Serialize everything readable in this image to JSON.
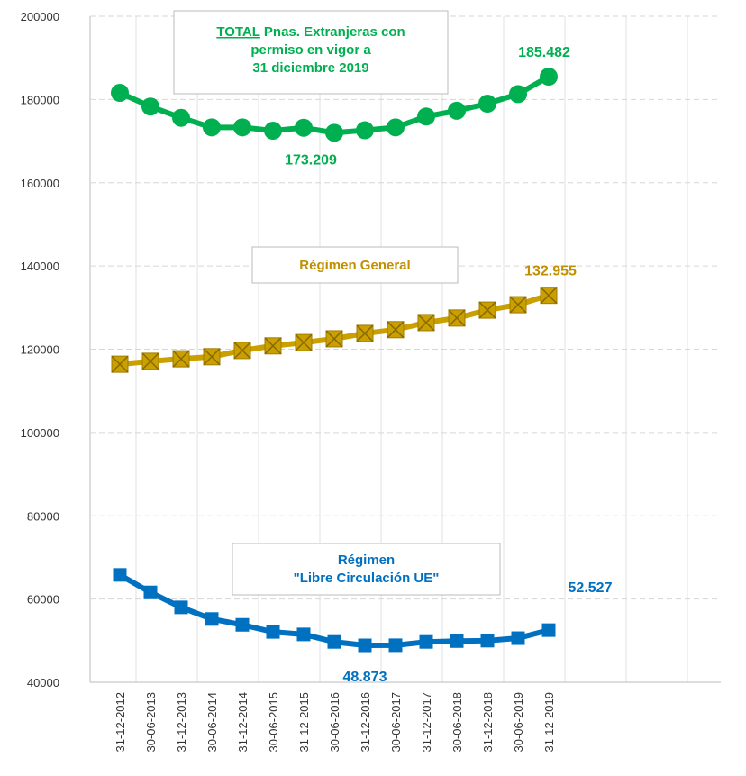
{
  "chart_data": {
    "type": "line",
    "categories": [
      "31-12-2012",
      "30-06-2013",
      "31-12-2013",
      "30-06-2014",
      "31-12-2014",
      "30-06-2015",
      "31-12-2015",
      "30-06-2016",
      "31-12-2016",
      "30-06-2017",
      "31-12-2017",
      "30-06-2018",
      "31-12-2018",
      "30-06-2019",
      "31-12-2019"
    ],
    "ylim": [
      40000,
      200000
    ],
    "yticks": [
      40000,
      60000,
      80000,
      100000,
      120000,
      140000,
      160000,
      180000,
      200000
    ],
    "grid": true,
    "series": [
      {
        "emphasis": "TOTAL",
        "label_lines": [
          "Pnas. Extranjeras con",
          "permiso en vigor a",
          "31 diciembre 2019"
        ],
        "color": "#00b050",
        "marker": "circle",
        "values": [
          181600,
          178300,
          175600,
          173300,
          173300,
          172500,
          173209,
          172000,
          172600,
          173300,
          175900,
          177300,
          179000,
          181300,
          185482
        ],
        "value_labels": [
          null,
          null,
          null,
          null,
          null,
          null,
          "173.209",
          null,
          null,
          null,
          null,
          null,
          null,
          null,
          "185.482"
        ]
      },
      {
        "label_lines": [
          "Régimen General"
        ],
        "color": "#c9a000",
        "label_color": "#c09000",
        "marker": "square-x",
        "values": [
          116400,
          117100,
          117700,
          118200,
          119700,
          120800,
          121600,
          122500,
          123800,
          124700,
          126400,
          127500,
          129400,
          130700,
          132955
        ],
        "value_labels": [
          null,
          null,
          null,
          null,
          null,
          null,
          null,
          null,
          null,
          null,
          null,
          null,
          null,
          null,
          "132.955"
        ]
      },
      {
        "label_lines": [
          "Régimen",
          "\"Libre Circulación UE\""
        ],
        "color": "#0070c0",
        "marker": "square",
        "values": [
          65800,
          61600,
          58000,
          55200,
          53800,
          52100,
          51500,
          49700,
          48873,
          48900,
          49700,
          49900,
          50000,
          50600,
          52527
        ],
        "value_labels": [
          null,
          null,
          null,
          null,
          null,
          null,
          null,
          null,
          "48.873",
          null,
          null,
          null,
          null,
          null,
          "52.527"
        ]
      }
    ]
  }
}
